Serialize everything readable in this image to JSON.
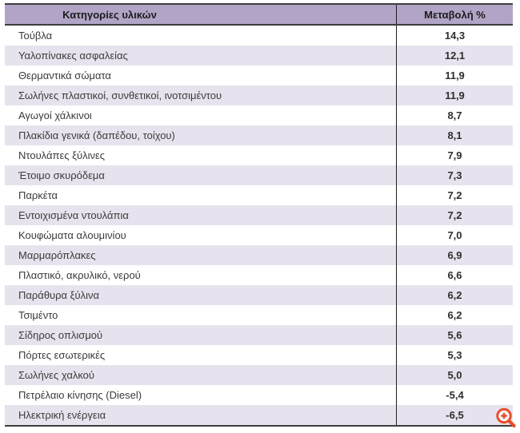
{
  "table": {
    "col1_header": "Κατηγορίες υλικών",
    "col2_header": "Μεταβολή %",
    "rows": [
      {
        "label": "Τούβλα",
        "value": "14,3"
      },
      {
        "label": "Υαλοπίνακες ασφαλείας",
        "value": "12,1"
      },
      {
        "label": "Θερμαντικά σώματα",
        "value": "11,9"
      },
      {
        "label": "Σωλήνες πλαστικοί, συνθετικοί, ινοτσιμέντου",
        "value": "11,9"
      },
      {
        "label": "Αγωγοί χάλκινοι",
        "value": "8,7"
      },
      {
        "label": "Πλακίδια γενικά (δαπέδου, τοίχου)",
        "value": "8,1"
      },
      {
        "label": "Ντουλάπες ξύλινες",
        "value": "7,9"
      },
      {
        "label": "Έτοιμο σκυρόδεμα",
        "value": "7,3"
      },
      {
        "label": "Παρκέτα",
        "value": "7,2"
      },
      {
        "label": "Εντοιχισμένα ντουλάπια",
        "value": "7,2"
      },
      {
        "label": "Κουφώματα αλουμινίου",
        "value": "7,0"
      },
      {
        "label": "Μαρμαρόπλακες",
        "value": "6,9"
      },
      {
        "label": "Πλαστικό, ακρυλικό, νερού",
        "value": "6,6"
      },
      {
        "label": "Παράθυρα ξύλινα",
        "value": "6,2"
      },
      {
        "label": "Τσιμέντο",
        "value": "6,2"
      },
      {
        "label": "Σίδηρος οπλισμού",
        "value": "5,6"
      },
      {
        "label": "Πόρτες εσωτερικές",
        "value": "5,3"
      },
      {
        "label": "Σωλήνες χαλκού",
        "value": "5,0"
      },
      {
        "label": "Πετρέλαιο κίνησης (Diesel)",
        "value": "-5,4"
      },
      {
        "label": "Ηλεκτρική ενέργεια",
        "value": "-6,5"
      }
    ]
  },
  "chart_data": {
    "type": "table",
    "columns": [
      "Κατηγορίες υλικών",
      "Μεταβολή %"
    ],
    "categories": [
      "Τούβλα",
      "Υαλοπίνακες ασφαλείας",
      "Θερμαντικά σώματα",
      "Σωλήνες πλαστικοί, συνθετικοί, ινοτσιμέντου",
      "Αγωγοί χάλκινοι",
      "Πλακίδια γενικά (δαπέδου, τοίχου)",
      "Ντουλάπες ξύλινες",
      "Έτοιμο σκυρόδεμα",
      "Παρκέτα",
      "Εντοιχισμένα ντουλάπια",
      "Κουφώματα αλουμινίου",
      "Μαρμαρόπλακες",
      "Πλαστικό, ακρυλικό, νερού",
      "Παράθυρα ξύλινα",
      "Τσιμέντο",
      "Σίδηρος οπλισμού",
      "Πόρτες εσωτερικές",
      "Σωλήνες χαλκού",
      "Πετρέλαιο κίνησης (Diesel)",
      "Ηλεκτρική ενέργεια"
    ],
    "values": [
      14.3,
      12.1,
      11.9,
      11.9,
      8.7,
      8.1,
      7.9,
      7.3,
      7.2,
      7.2,
      7.0,
      6.9,
      6.6,
      6.2,
      6.2,
      5.6,
      5.3,
      5.0,
      -5.4,
      -6.5
    ]
  },
  "icons": {
    "zoom_in": "magnifier-with-plus"
  },
  "colors": {
    "header_bg": "#b1a4c6",
    "stripe_bg": "#e7e3ee",
    "border_dark": "#3d3d3d",
    "icon_accent": "#e84c2a"
  }
}
